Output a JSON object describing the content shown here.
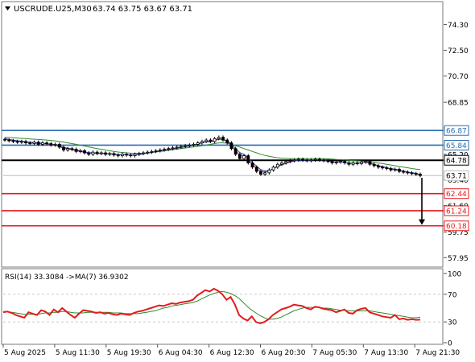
{
  "chart_data": {
    "type": "candlestick",
    "header": {
      "symbol_label": "USCRUDE.U25,M30",
      "ohlc_label": "63.74 63.75 63.67 63.71"
    },
    "price_axis": {
      "ticks": [
        "74.30",
        "72.50",
        "70.70",
        "68.85",
        "67.05",
        "65.20",
        "63.40",
        "61.60",
        "59.75",
        "57.95"
      ],
      "tick_values": [
        74.3,
        72.5,
        70.7,
        68.85,
        67.05,
        65.2,
        63.4,
        61.6,
        59.75,
        57.95
      ],
      "ylim": [
        57.4,
        75.8
      ]
    },
    "levels": [
      {
        "price": 66.87,
        "label": "66.87",
        "kind": "resistance",
        "color": "#2b6cb0"
      },
      {
        "price": 65.84,
        "label": "65.84",
        "kind": "resistance",
        "color": "#2b6cb0"
      },
      {
        "price": 64.78,
        "label": "64.78",
        "kind": "pivot",
        "color": "#000000"
      },
      {
        "price": 62.44,
        "label": "62.44",
        "kind": "support",
        "color": "#e41a1c"
      },
      {
        "price": 61.24,
        "label": "61.24",
        "kind": "support",
        "color": "#e41a1c"
      },
      {
        "price": 60.18,
        "label": "60.18",
        "kind": "support",
        "color": "#e41a1c"
      }
    ],
    "current_price": {
      "price": 63.71,
      "label": "63.71"
    },
    "forecast_arrow": {
      "from": 63.55,
      "to": 60.3,
      "direction": "down"
    },
    "time_axis": {
      "labels": [
        "5 Aug 2025",
        "5 Aug 11:30",
        "5 Aug 19:30",
        "6 Aug 04:30",
        "6 Aug 12:30",
        "6 Aug 20:30",
        "7 Aug 05:30",
        "7 Aug 13:30",
        "7 Aug 21:30"
      ]
    },
    "price_series": {
      "name": "Close",
      "values": [
        66.2,
        66.15,
        66.1,
        66.05,
        66.1,
        66.0,
        65.95,
        66.05,
        65.9,
        66.0,
        65.95,
        65.85,
        65.9,
        65.7,
        65.5,
        65.6,
        65.55,
        65.4,
        65.45,
        65.3,
        65.2,
        65.35,
        65.25,
        65.3,
        65.2,
        65.25,
        65.15,
        65.1,
        65.2,
        65.15,
        65.1,
        65.2,
        65.25,
        65.3,
        65.35,
        65.4,
        65.45,
        65.5,
        65.55,
        65.6,
        65.65,
        65.7,
        65.75,
        65.8,
        65.85,
        65.9,
        66.0,
        66.1,
        66.2,
        66.1,
        66.3,
        66.4,
        66.2,
        66.0,
        65.6,
        65.2,
        64.9,
        65.1,
        64.6,
        64.3,
        64.0,
        63.8,
        63.9,
        64.1,
        64.3,
        64.5,
        64.6,
        64.7,
        64.75,
        64.8,
        64.85,
        64.8,
        64.75,
        64.8,
        64.85,
        64.8,
        64.75,
        64.7,
        64.6,
        64.65,
        64.7,
        64.6,
        64.5,
        64.6,
        64.55,
        64.65,
        64.7,
        64.5,
        64.4,
        64.3,
        64.25,
        64.2,
        64.1,
        64.15,
        64.0,
        63.95,
        63.9,
        63.85,
        63.8,
        63.71
      ]
    },
    "ma_series": [
      {
        "color": "#2e8b2e",
        "values": [
          66.4,
          66.38,
          66.36,
          66.34,
          66.32,
          66.3,
          66.28,
          66.26,
          66.24,
          66.22,
          66.2,
          66.17,
          66.14,
          66.1,
          66.06,
          66.0,
          65.95,
          65.9,
          65.84,
          65.78,
          65.72,
          65.66,
          65.6,
          65.55,
          65.5,
          65.45,
          65.4,
          65.36,
          65.33,
          65.3,
          65.28,
          65.27,
          65.27,
          65.28,
          65.3,
          65.33,
          65.36,
          65.4,
          65.44,
          65.48,
          65.52,
          65.56,
          65.6,
          65.64,
          65.68,
          65.72,
          65.76,
          65.8,
          65.85,
          65.9,
          65.95,
          66.0,
          66.0,
          65.98,
          65.9,
          65.8,
          65.7,
          65.6,
          65.5,
          65.4,
          65.3,
          65.2,
          65.12,
          65.06,
          65.0,
          64.96,
          64.93,
          64.91,
          64.9,
          64.9,
          64.9,
          64.9,
          64.9,
          64.9,
          64.9,
          64.9,
          64.89,
          64.88,
          64.86,
          64.84,
          64.82,
          64.8,
          64.78,
          64.76,
          64.74,
          64.72,
          64.7,
          64.67,
          64.63,
          64.59,
          64.55,
          64.5,
          64.45,
          64.4,
          64.35,
          64.3,
          64.25,
          64.2,
          64.16,
          64.12
        ]
      },
      {
        "color": "#d62728",
        "values": [
          66.25,
          66.2,
          66.15,
          66.1,
          66.08,
          66.05,
          66.0,
          66.0,
          65.95,
          65.95,
          65.92,
          65.88,
          65.85,
          65.75,
          65.62,
          65.58,
          65.52,
          65.45,
          65.4,
          65.33,
          65.27,
          65.28,
          65.26,
          65.27,
          65.24,
          65.23,
          65.19,
          65.15,
          65.17,
          65.16,
          65.13,
          65.16,
          65.2,
          65.25,
          65.3,
          65.35,
          65.4,
          65.45,
          65.5,
          65.55,
          65.6,
          65.65,
          65.7,
          65.75,
          65.8,
          65.85,
          65.94,
          66.03,
          66.12,
          66.1,
          66.2,
          66.3,
          66.23,
          66.1,
          65.8,
          65.45,
          65.15,
          65.1,
          64.8,
          64.5,
          64.2,
          64.0,
          63.95,
          64.05,
          64.2,
          64.38,
          64.5,
          64.6,
          64.68,
          64.75,
          64.8,
          64.8,
          64.77,
          64.78,
          64.82,
          64.8,
          64.77,
          64.73,
          64.65,
          64.65,
          64.68,
          64.63,
          64.55,
          64.57,
          64.56,
          64.61,
          64.66,
          64.56,
          64.47,
          64.37,
          64.3,
          64.24,
          64.15,
          64.14,
          64.05,
          63.98,
          63.93,
          63.88,
          63.83,
          63.75
        ]
      },
      {
        "color": "#1f3fbf",
        "values": [
          66.3,
          66.25,
          66.2,
          66.15,
          66.12,
          66.08,
          66.04,
          66.03,
          65.99,
          65.98,
          65.95,
          65.9,
          65.87,
          65.79,
          65.68,
          65.63,
          65.57,
          65.5,
          65.45,
          65.38,
          65.31,
          65.31,
          65.28,
          65.29,
          65.26,
          65.25,
          65.21,
          65.17,
          65.18,
          65.17,
          65.14,
          65.16,
          65.19,
          65.23,
          65.28,
          65.33,
          65.38,
          65.43,
          65.48,
          65.53,
          65.58,
          65.63,
          65.68,
          65.73,
          65.78,
          65.83,
          65.91,
          66.0,
          66.08,
          66.08,
          66.17,
          66.26,
          66.24,
          66.14,
          65.91,
          65.6,
          65.32,
          65.2,
          64.93,
          64.64,
          64.36,
          64.12,
          64.03,
          64.06,
          64.18,
          64.33,
          64.46,
          64.56,
          64.65,
          64.72,
          64.78,
          64.79,
          64.77,
          64.78,
          64.81,
          64.8,
          64.78,
          64.74,
          64.67,
          64.66,
          64.68,
          64.64,
          64.57,
          64.58,
          64.57,
          64.61,
          64.65,
          64.58,
          64.5,
          64.41,
          64.34,
          64.27,
          64.19,
          64.16,
          64.09,
          64.02,
          63.96,
          63.91,
          63.86,
          63.79
        ]
      }
    ],
    "rsi": {
      "label": "RSI(14) 33.3084  ->MA(7) 36.9302",
      "ticks": [
        "100",
        "70",
        "30",
        "0"
      ],
      "tick_values": [
        100,
        70,
        30,
        0
      ],
      "ylim": [
        0,
        100
      ],
      "levels": [
        70,
        30
      ],
      "rsi_values": [
        44,
        45,
        43,
        40,
        38,
        36,
        44,
        42,
        40,
        47,
        45,
        40,
        48,
        44,
        50,
        45,
        40,
        36,
        42,
        47,
        46,
        45,
        43,
        44,
        42,
        43,
        41,
        40,
        42,
        41,
        40,
        43,
        45,
        46,
        48,
        50,
        52,
        54,
        53,
        55,
        57,
        56,
        58,
        59,
        60,
        62,
        68,
        72,
        76,
        74,
        78,
        75,
        70,
        62,
        66,
        55,
        40,
        35,
        32,
        38,
        30,
        28,
        30,
        34,
        40,
        44,
        48,
        50,
        52,
        55,
        54,
        53,
        50,
        48,
        52,
        51,
        49,
        48,
        47,
        44,
        46,
        48,
        43,
        42,
        47,
        49,
        50,
        44,
        42,
        40,
        38,
        37,
        36,
        40,
        34,
        35,
        33,
        34,
        33,
        33.31
      ],
      "ma_values": [
        45,
        45,
        44,
        43,
        42,
        41,
        41,
        41,
        41,
        42,
        43,
        43,
        44,
        44,
        45,
        45,
        44,
        43,
        43,
        43,
        44,
        44,
        44,
        44,
        44,
        44,
        43,
        43,
        43,
        42,
        42,
        42,
        42,
        43,
        44,
        45,
        46,
        48,
        50,
        51,
        53,
        54,
        55,
        56,
        57,
        58,
        60,
        63,
        66,
        69,
        71,
        73,
        74,
        73,
        71,
        68,
        64,
        58,
        52,
        47,
        43,
        39,
        36,
        34,
        34,
        35,
        37,
        40,
        43,
        46,
        48,
        50,
        51,
        51,
        51,
        51,
        50,
        50,
        49,
        48,
        47,
        47,
        46,
        46,
        46,
        46,
        46,
        46,
        45,
        44,
        43,
        42,
        41,
        40,
        39,
        38,
        37,
        36,
        36,
        36.93
      ]
    },
    "colors": {
      "up_candle": "#ffffff",
      "down_candle": "#000000",
      "rsi_line": "#e41a1c",
      "rsi_ma": "#2e8b2e",
      "grid": "#c8c8c8"
    }
  }
}
